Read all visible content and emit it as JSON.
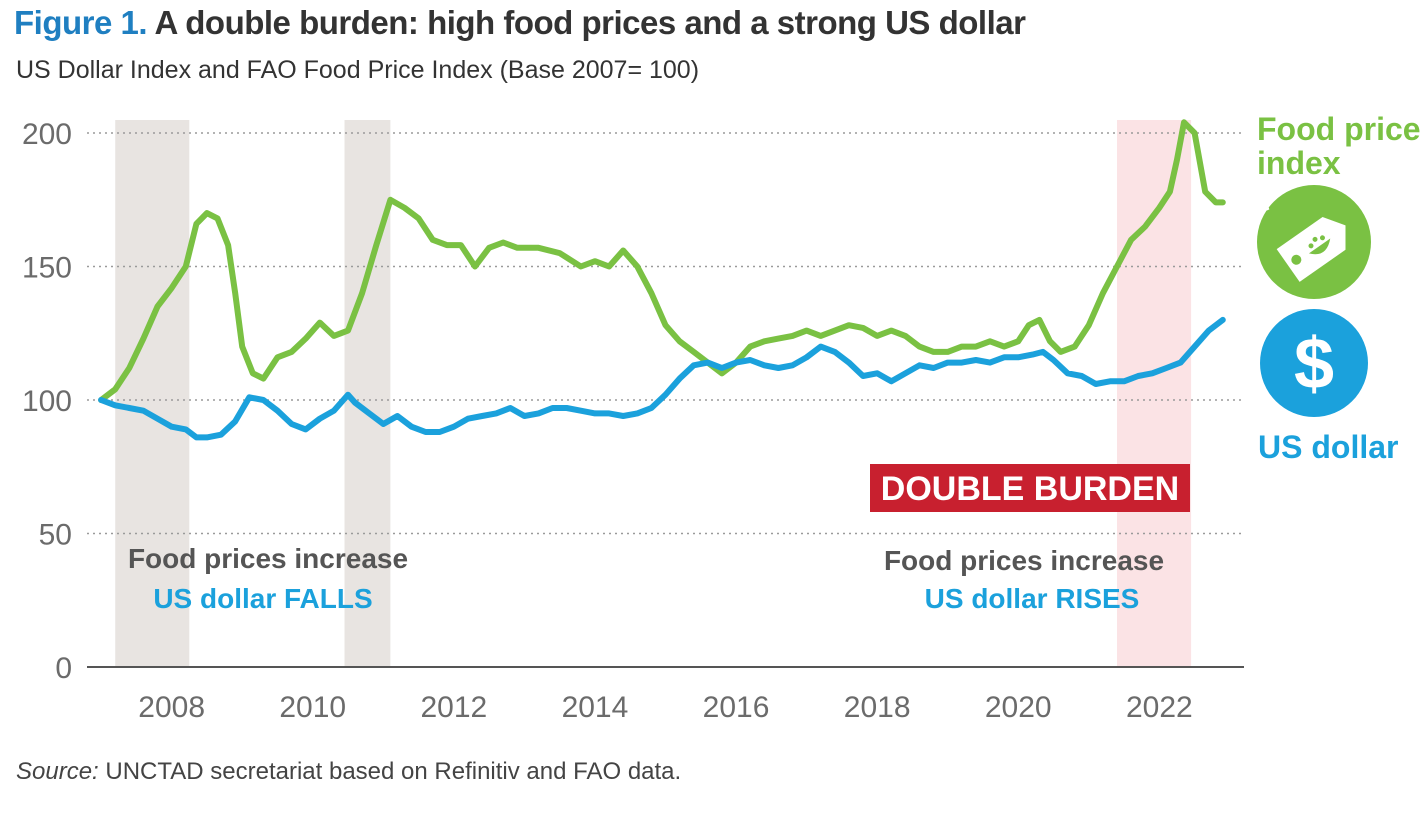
{
  "figure": {
    "number": "Figure 1.",
    "title": "A double burden: high food prices and a strong US dollar",
    "subtitle": "US Dollar Index and FAO Food Price Index (Base 2007= 100)",
    "source_label": "Source:",
    "source_text": " UNCTAD secretariat based on Refinitiv and FAO data."
  },
  "colors": {
    "food": "#7ac143",
    "usd": "#1ba1dc",
    "title_blue": "#1f7fc1",
    "burden_red": "#c8202f",
    "shade_grey": "#e8e4e1",
    "shade_pink": "#fbe3e5",
    "annot_grey": "#555555"
  },
  "icons": {
    "food": "food-price-tag-icon",
    "usd": "dollar-sign-icon"
  },
  "chart_data": {
    "type": "line",
    "title": "A double burden: high food prices and a strong US dollar",
    "xlabel": "",
    "ylabel": "",
    "xlim": [
      2006.8,
      2023.2
    ],
    "ylim": [
      0,
      200
    ],
    "yticks": [
      0,
      50,
      100,
      150,
      200
    ],
    "xticks": [
      2008,
      2010,
      2012,
      2014,
      2016,
      2018,
      2020,
      2022
    ],
    "grid": "horizontal dotted",
    "shaded_periods": [
      {
        "start": 2007.2,
        "end": 2008.25,
        "label": "Food prices increase / US dollar FALLS"
      },
      {
        "start": 2010.45,
        "end": 2011.1,
        "label": "Food prices increase / US dollar FALLS"
      },
      {
        "start": 2021.4,
        "end": 2022.45,
        "label": "DOUBLE BURDEN"
      }
    ],
    "series": [
      {
        "name": "Food price index",
        "x": [
          2007.0,
          2007.2,
          2007.4,
          2007.6,
          2007.8,
          2008.0,
          2008.2,
          2008.35,
          2008.5,
          2008.65,
          2008.8,
          2008.9,
          2009.0,
          2009.15,
          2009.3,
          2009.5,
          2009.7,
          2009.9,
          2010.1,
          2010.3,
          2010.5,
          2010.7,
          2010.9,
          2011.1,
          2011.3,
          2011.5,
          2011.7,
          2011.9,
          2012.1,
          2012.3,
          2012.5,
          2012.7,
          2012.9,
          2013.2,
          2013.5,
          2013.8,
          2014.0,
          2014.2,
          2014.4,
          2014.6,
          2014.8,
          2015.0,
          2015.2,
          2015.4,
          2015.6,
          2015.8,
          2016.0,
          2016.2,
          2016.4,
          2016.6,
          2016.8,
          2017.0,
          2017.2,
          2017.4,
          2017.6,
          2017.8,
          2018.0,
          2018.2,
          2018.4,
          2018.6,
          2018.8,
          2019.0,
          2019.2,
          2019.4,
          2019.6,
          2019.8,
          2020.0,
          2020.15,
          2020.3,
          2020.45,
          2020.6,
          2020.8,
          2021.0,
          2021.2,
          2021.4,
          2021.6,
          2021.8,
          2022.0,
          2022.15,
          2022.25,
          2022.35,
          2022.5,
          2022.65,
          2022.8,
          2022.9
        ],
        "values": [
          100,
          104,
          112,
          123,
          135,
          142,
          150,
          166,
          170,
          168,
          158,
          140,
          120,
          110,
          108,
          116,
          118,
          123,
          129,
          124,
          126,
          140,
          158,
          175,
          172,
          168,
          160,
          158,
          158,
          150,
          157,
          159,
          157,
          157,
          155,
          150,
          152,
          150,
          156,
          150,
          140,
          128,
          122,
          118,
          114,
          110,
          114,
          120,
          122,
          123,
          124,
          126,
          124,
          126,
          128,
          127,
          124,
          126,
          124,
          120,
          118,
          118,
          120,
          120,
          122,
          120,
          122,
          128,
          130,
          122,
          118,
          120,
          128,
          140,
          150,
          160,
          165,
          172,
          178,
          190,
          204,
          200,
          178,
          174,
          174
        ]
      },
      {
        "name": "US dollar",
        "x": [
          2007.0,
          2007.2,
          2007.4,
          2007.6,
          2007.8,
          2008.0,
          2008.2,
          2008.35,
          2008.5,
          2008.7,
          2008.9,
          2009.1,
          2009.3,
          2009.5,
          2009.7,
          2009.9,
          2010.1,
          2010.3,
          2010.5,
          2010.6,
          2010.8,
          2011.0,
          2011.2,
          2011.4,
          2011.6,
          2011.8,
          2012.0,
          2012.2,
          2012.4,
          2012.6,
          2012.8,
          2013.0,
          2013.2,
          2013.4,
          2013.6,
          2013.8,
          2014.0,
          2014.2,
          2014.4,
          2014.6,
          2014.8,
          2015.0,
          2015.2,
          2015.4,
          2015.6,
          2015.8,
          2016.0,
          2016.2,
          2016.4,
          2016.6,
          2016.8,
          2017.0,
          2017.2,
          2017.4,
          2017.6,
          2017.8,
          2018.0,
          2018.2,
          2018.4,
          2018.6,
          2018.8,
          2019.0,
          2019.2,
          2019.4,
          2019.6,
          2019.8,
          2020.0,
          2020.2,
          2020.35,
          2020.5,
          2020.7,
          2020.9,
          2021.1,
          2021.3,
          2021.5,
          2021.7,
          2021.9,
          2022.1,
          2022.3,
          2022.5,
          2022.7,
          2022.9
        ],
        "values": [
          100,
          98,
          97,
          96,
          93,
          90,
          89,
          86,
          86,
          87,
          92,
          101,
          100,
          96,
          91,
          89,
          93,
          96,
          102,
          99,
          95,
          91,
          94,
          90,
          88,
          88,
          90,
          93,
          94,
          95,
          97,
          94,
          95,
          97,
          97,
          96,
          95,
          95,
          94,
          95,
          97,
          102,
          108,
          113,
          114,
          112,
          114,
          115,
          113,
          112,
          113,
          116,
          120,
          118,
          114,
          109,
          110,
          107,
          110,
          113,
          112,
          114,
          114,
          115,
          114,
          116,
          116,
          117,
          118,
          115,
          110,
          109,
          106,
          107,
          107,
          109,
          110,
          112,
          114,
          120,
          126,
          130
        ]
      }
    ],
    "legend": [
      "Food price index",
      "US dollar"
    ],
    "legend_placement": "right",
    "annotations": {
      "left_line1": "Food prices increase",
      "left_line2": "US dollar FALLS",
      "right_line1": "Food prices increase",
      "right_line2": "US dollar RISES",
      "burden_label": "DOUBLE BURDEN",
      "legend_food_line1": "Food price",
      "legend_food_line2": "index",
      "legend_usd": "US dollar"
    }
  }
}
